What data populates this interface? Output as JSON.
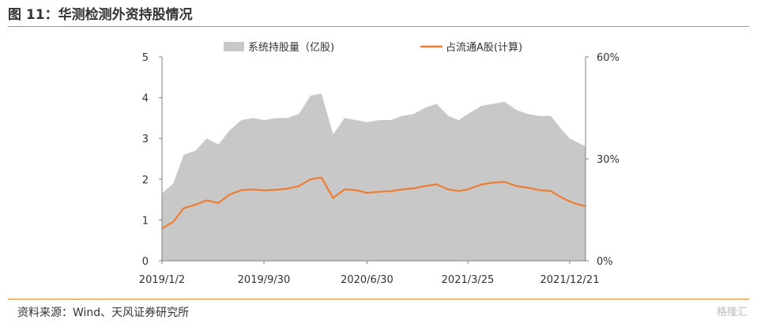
{
  "figure": {
    "title": "图 11：华测检测外资持股情况",
    "source": "资料来源：Wind、天风证券研究所",
    "watermark": "格隆汇"
  },
  "chart_data": {
    "type": "area",
    "x_ticks": [
      "2019/1/2",
      "2019/9/30",
      "2020/6/30",
      "2021/3/25",
      "2021/12/21"
    ],
    "x": [
      "2019/1/2",
      "2019/2/1",
      "2019/3/1",
      "2019/4/1",
      "2019/5/1",
      "2019/6/1",
      "2019/7/1",
      "2019/8/1",
      "2019/9/1",
      "2019/9/30",
      "2019/11/1",
      "2019/12/1",
      "2020/1/1",
      "2020/2/1",
      "2020/3/1",
      "2020/4/1",
      "2020/5/1",
      "2020/6/1",
      "2020/6/30",
      "2020/8/1",
      "2020/9/1",
      "2020/10/1",
      "2020/11/1",
      "2020/12/1",
      "2021/1/1",
      "2021/2/1",
      "2021/3/1",
      "2021/3/25",
      "2021/5/1",
      "2021/6/1",
      "2021/7/1",
      "2021/8/1",
      "2021/9/1",
      "2021/10/1",
      "2021/11/1",
      "2021/12/1",
      "2021/12/21",
      "2022/1/1",
      "2022/2/1"
    ],
    "series": [
      {
        "name": "系统持股量（亿股)",
        "axis": "left",
        "color": "#c8c8c8",
        "values": [
          1.65,
          1.9,
          2.6,
          2.7,
          3.0,
          2.85,
          3.2,
          3.45,
          3.5,
          3.45,
          3.5,
          3.5,
          3.6,
          4.05,
          4.1,
          3.1,
          3.5,
          3.45,
          3.4,
          3.45,
          3.45,
          3.55,
          3.6,
          3.75,
          3.85,
          3.55,
          3.45,
          3.6,
          3.8,
          3.85,
          3.9,
          3.7,
          3.6,
          3.55,
          3.55,
          3.2,
          3.0,
          2.95,
          2.8
        ]
      },
      {
        "name": "占流通A股(计算)",
        "axis": "right",
        "color": "#ed7d31",
        "values": [
          9.5,
          11.5,
          15.5,
          16.5,
          17.8,
          17.0,
          19.5,
          20.8,
          21.0,
          20.7,
          20.9,
          21.2,
          22.0,
          24.0,
          24.5,
          18.5,
          21.0,
          20.8,
          20.0,
          20.3,
          20.5,
          21.0,
          21.3,
          22.0,
          22.5,
          21.0,
          20.5,
          21.0,
          22.5,
          23.0,
          23.2,
          22.0,
          21.5,
          20.8,
          20.5,
          18.5,
          17.5,
          17.0,
          16.0
        ]
      }
    ],
    "y_left": {
      "ticks": [
        "0",
        "1",
        "2",
        "3",
        "4",
        "5"
      ],
      "ylim": [
        0,
        5
      ]
    },
    "y_right": {
      "ticks": [
        "0%",
        "30%",
        "60%"
      ],
      "ylim": [
        0,
        60
      ]
    },
    "grid": false,
    "legend": "top"
  }
}
